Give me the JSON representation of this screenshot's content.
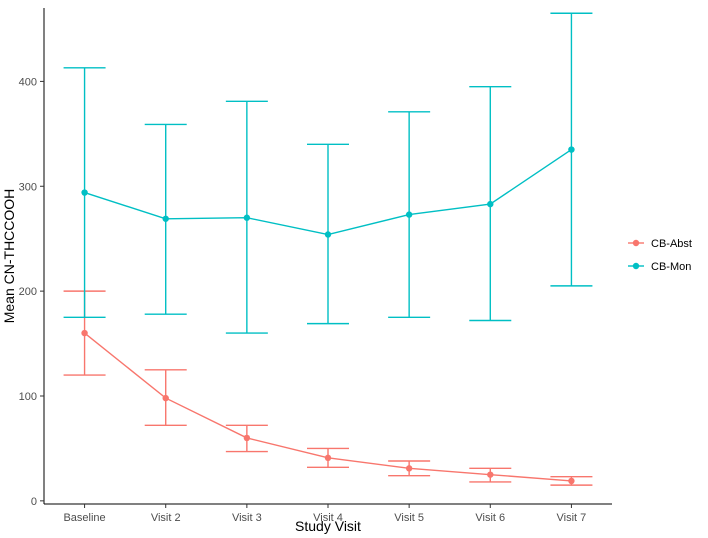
{
  "chart_data": {
    "type": "line",
    "title": "",
    "xlabel": "Study Visit",
    "ylabel": "Mean CN-THCCOOH",
    "categories": [
      "Baseline",
      "Visit 2",
      "Visit 3",
      "Visit 4",
      "Visit 5",
      "Visit 6",
      "Visit 7"
    ],
    "ylim": [
      -3,
      470
    ],
    "yticks": [
      0,
      100,
      200,
      300,
      400
    ],
    "grid": false,
    "legend_position": "right",
    "series": [
      {
        "name": "CB-Abst",
        "color": "#F8766D",
        "values": [
          160,
          98,
          60,
          41,
          31,
          25,
          19
        ],
        "lower": [
          120,
          72,
          47,
          32,
          24,
          18,
          15
        ],
        "upper": [
          200,
          125,
          72,
          50,
          38,
          31,
          23
        ]
      },
      {
        "name": "CB-Mon",
        "color": "#00BFC4",
        "values": [
          294,
          269,
          270,
          254,
          273,
          283,
          335
        ],
        "lower": [
          175,
          178,
          160,
          169,
          175,
          172,
          205
        ],
        "upper": [
          413,
          359,
          381,
          340,
          371,
          395,
          465
        ]
      }
    ]
  }
}
